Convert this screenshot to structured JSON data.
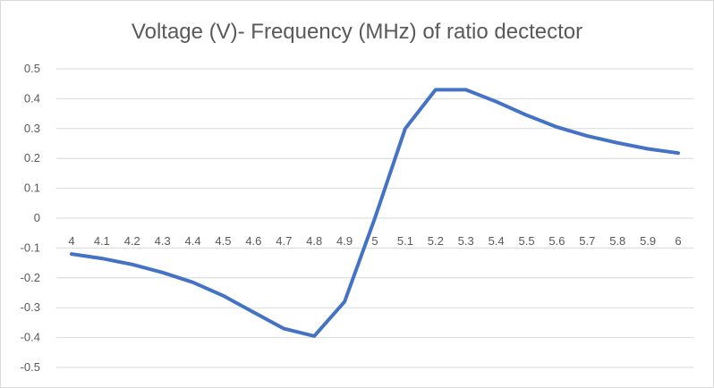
{
  "chart_data": {
    "type": "line",
    "title": "Voltage (V)- Frequency (MHz) of ratio dectector",
    "xlabel": "",
    "ylabel": "",
    "categories": [
      "4",
      "4.1",
      "4.2",
      "4.3",
      "4.4",
      "4.5",
      "4.6",
      "4.7",
      "4.8",
      "4.9",
      "5",
      "5.1",
      "5.2",
      "5.3",
      "5.4",
      "5.5",
      "5.6",
      "5.7",
      "5.8",
      "5.9",
      "6"
    ],
    "series": [
      {
        "name": "Voltage (V)",
        "color": "#4472c4",
        "values": [
          -0.12,
          -0.135,
          -0.155,
          -0.182,
          -0.215,
          -0.26,
          -0.315,
          -0.37,
          -0.395,
          -0.28,
          0.0,
          0.3,
          0.43,
          0.43,
          0.39,
          0.345,
          0.305,
          0.275,
          0.252,
          0.232,
          0.218
        ]
      }
    ],
    "ylim": [
      -0.5,
      0.5
    ],
    "yticks": [
      "0.5",
      "0.4",
      "0.3",
      "0.2",
      "0.1",
      "0",
      "-0.1",
      "-0.2",
      "-0.3",
      "-0.4",
      "-0.5"
    ],
    "grid": true,
    "legend": "none"
  }
}
